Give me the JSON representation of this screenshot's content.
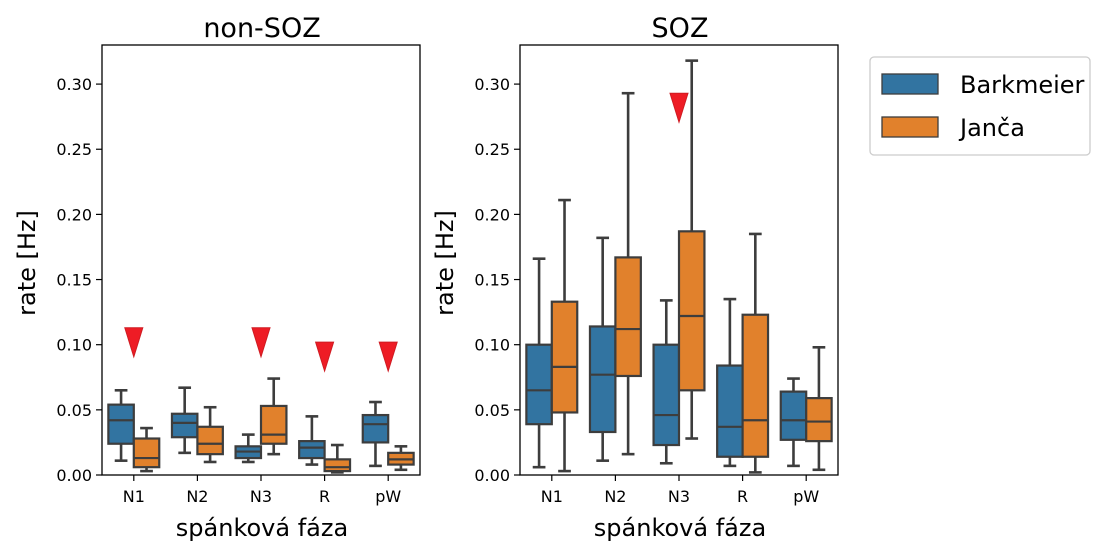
{
  "chart_data": [
    {
      "type": "box",
      "title": "non-SOZ",
      "xlabel": "spánková fáza",
      "ylabel": "rate [Hz]",
      "ylim": [
        0,
        0.33
      ],
      "yticks": [
        0.0,
        0.05,
        0.1,
        0.15,
        0.2,
        0.25,
        0.3
      ],
      "ytick_labels": [
        "0.00",
        "0.05",
        "0.10",
        "0.15",
        "0.20",
        "0.25",
        "0.30"
      ],
      "categories": [
        "N1",
        "N2",
        "N3",
        "R",
        "pW"
      ],
      "series": [
        {
          "name": "Barkmeier",
          "color": "#3274a1",
          "boxes": [
            {
              "whislo": 0.011,
              "q1": 0.024,
              "med": 0.042,
              "q3": 0.054,
              "whishi": 0.065
            },
            {
              "whislo": 0.017,
              "q1": 0.029,
              "med": 0.04,
              "q3": 0.047,
              "whishi": 0.067
            },
            {
              "whislo": 0.01,
              "q1": 0.013,
              "med": 0.018,
              "q3": 0.022,
              "whishi": 0.031
            },
            {
              "whislo": 0.008,
              "q1": 0.013,
              "med": 0.021,
              "q3": 0.026,
              "whishi": 0.045
            },
            {
              "whislo": 0.007,
              "q1": 0.025,
              "med": 0.039,
              "q3": 0.046,
              "whishi": 0.056
            }
          ]
        },
        {
          "name": "Janča",
          "color": "#e1812c",
          "boxes": [
            {
              "whislo": 0.003,
              "q1": 0.006,
              "med": 0.013,
              "q3": 0.028,
              "whishi": 0.036
            },
            {
              "whislo": 0.01,
              "q1": 0.016,
              "med": 0.024,
              "q3": 0.037,
              "whishi": 0.052
            },
            {
              "whislo": 0.016,
              "q1": 0.024,
              "med": 0.031,
              "q3": 0.053,
              "whishi": 0.074
            },
            {
              "whislo": 0.002,
              "q1": 0.003,
              "med": 0.006,
              "q3": 0.012,
              "whishi": 0.023
            },
            {
              "whislo": 0.004,
              "q1": 0.008,
              "med": 0.012,
              "q3": 0.017,
              "whishi": 0.022
            }
          ]
        }
      ],
      "markers": [
        {
          "category": "N1",
          "y": 0.103
        },
        {
          "category": "N3",
          "y": 0.103
        },
        {
          "category": "R",
          "y": 0.092
        },
        {
          "category": "pW",
          "y": 0.092
        }
      ]
    },
    {
      "type": "box",
      "title": "SOZ",
      "xlabel": "spánková fáza",
      "ylabel": "rate [Hz]",
      "ylim": [
        0,
        0.33
      ],
      "yticks": [
        0.0,
        0.05,
        0.1,
        0.15,
        0.2,
        0.25,
        0.3
      ],
      "ytick_labels": [
        "0.00",
        "0.05",
        "0.10",
        "0.15",
        "0.20",
        "0.25",
        "0.30"
      ],
      "categories": [
        "N1",
        "N2",
        "N3",
        "R",
        "pW"
      ],
      "series": [
        {
          "name": "Barkmeier",
          "color": "#3274a1",
          "boxes": [
            {
              "whislo": 0.006,
              "q1": 0.039,
              "med": 0.065,
              "q3": 0.1,
              "whishi": 0.166
            },
            {
              "whislo": 0.011,
              "q1": 0.033,
              "med": 0.077,
              "q3": 0.114,
              "whishi": 0.182
            },
            {
              "whislo": 0.009,
              "q1": 0.023,
              "med": 0.046,
              "q3": 0.1,
              "whishi": 0.134
            },
            {
              "whislo": 0.007,
              "q1": 0.014,
              "med": 0.037,
              "q3": 0.084,
              "whishi": 0.135
            },
            {
              "whislo": 0.007,
              "q1": 0.027,
              "med": 0.042,
              "q3": 0.064,
              "whishi": 0.074
            }
          ]
        },
        {
          "name": "Janča",
          "color": "#e1812c",
          "boxes": [
            {
              "whislo": 0.003,
              "q1": 0.048,
              "med": 0.083,
              "q3": 0.133,
              "whishi": 0.211
            },
            {
              "whislo": 0.016,
              "q1": 0.076,
              "med": 0.112,
              "q3": 0.167,
              "whishi": 0.293
            },
            {
              "whislo": 0.028,
              "q1": 0.065,
              "med": 0.122,
              "q3": 0.187,
              "whishi": 0.318
            },
            {
              "whislo": 0.002,
              "q1": 0.014,
              "med": 0.042,
              "q3": 0.123,
              "whishi": 0.185
            },
            {
              "whislo": 0.004,
              "q1": 0.026,
              "med": 0.041,
              "q3": 0.059,
              "whishi": 0.098
            }
          ]
        }
      ],
      "markers": [
        {
          "category": "N3",
          "y": 0.283
        }
      ]
    }
  ],
  "legend": {
    "placement": "right",
    "items": [
      {
        "label": "Barkmeier",
        "color": "#3274a1"
      },
      {
        "label": "Janča",
        "color": "#e1812c"
      }
    ]
  },
  "marker_color": "#ee1c25"
}
